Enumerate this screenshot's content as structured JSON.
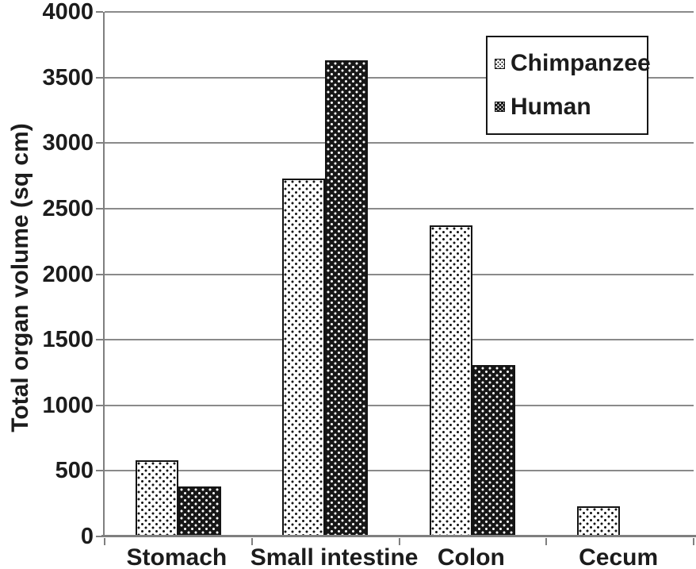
{
  "chart_data": {
    "type": "bar",
    "title": "",
    "categories": [
      "Stomach",
      "Small intestine",
      "Colon",
      "Cecum"
    ],
    "series": [
      {
        "name": "Chimpanzee",
        "pattern": "black-dots-on-white",
        "values": [
          580,
          2730,
          2370,
          230
        ]
      },
      {
        "name": "Human",
        "pattern": "white-dots-on-black",
        "values": [
          380,
          3630,
          1310,
          0
        ]
      }
    ],
    "xlabel": "",
    "ylabel": "Total organ volume (sq cm)",
    "ylim": [
      0,
      4000
    ],
    "ytick_step": 500,
    "ytick_labels": [
      "0",
      "500",
      "1000",
      "1500",
      "2000",
      "2500",
      "3000",
      "3500",
      "4000"
    ],
    "grid": "horizontal",
    "legend_position": "top-right"
  },
  "colors": {
    "background": "#ffffff",
    "text": "#1c1c1c",
    "grid": "#8a8a8a",
    "axis": "#7f7f7f",
    "bar_dark": "#171717",
    "bar_light": "#ffffff",
    "bar_border": "#141414"
  }
}
